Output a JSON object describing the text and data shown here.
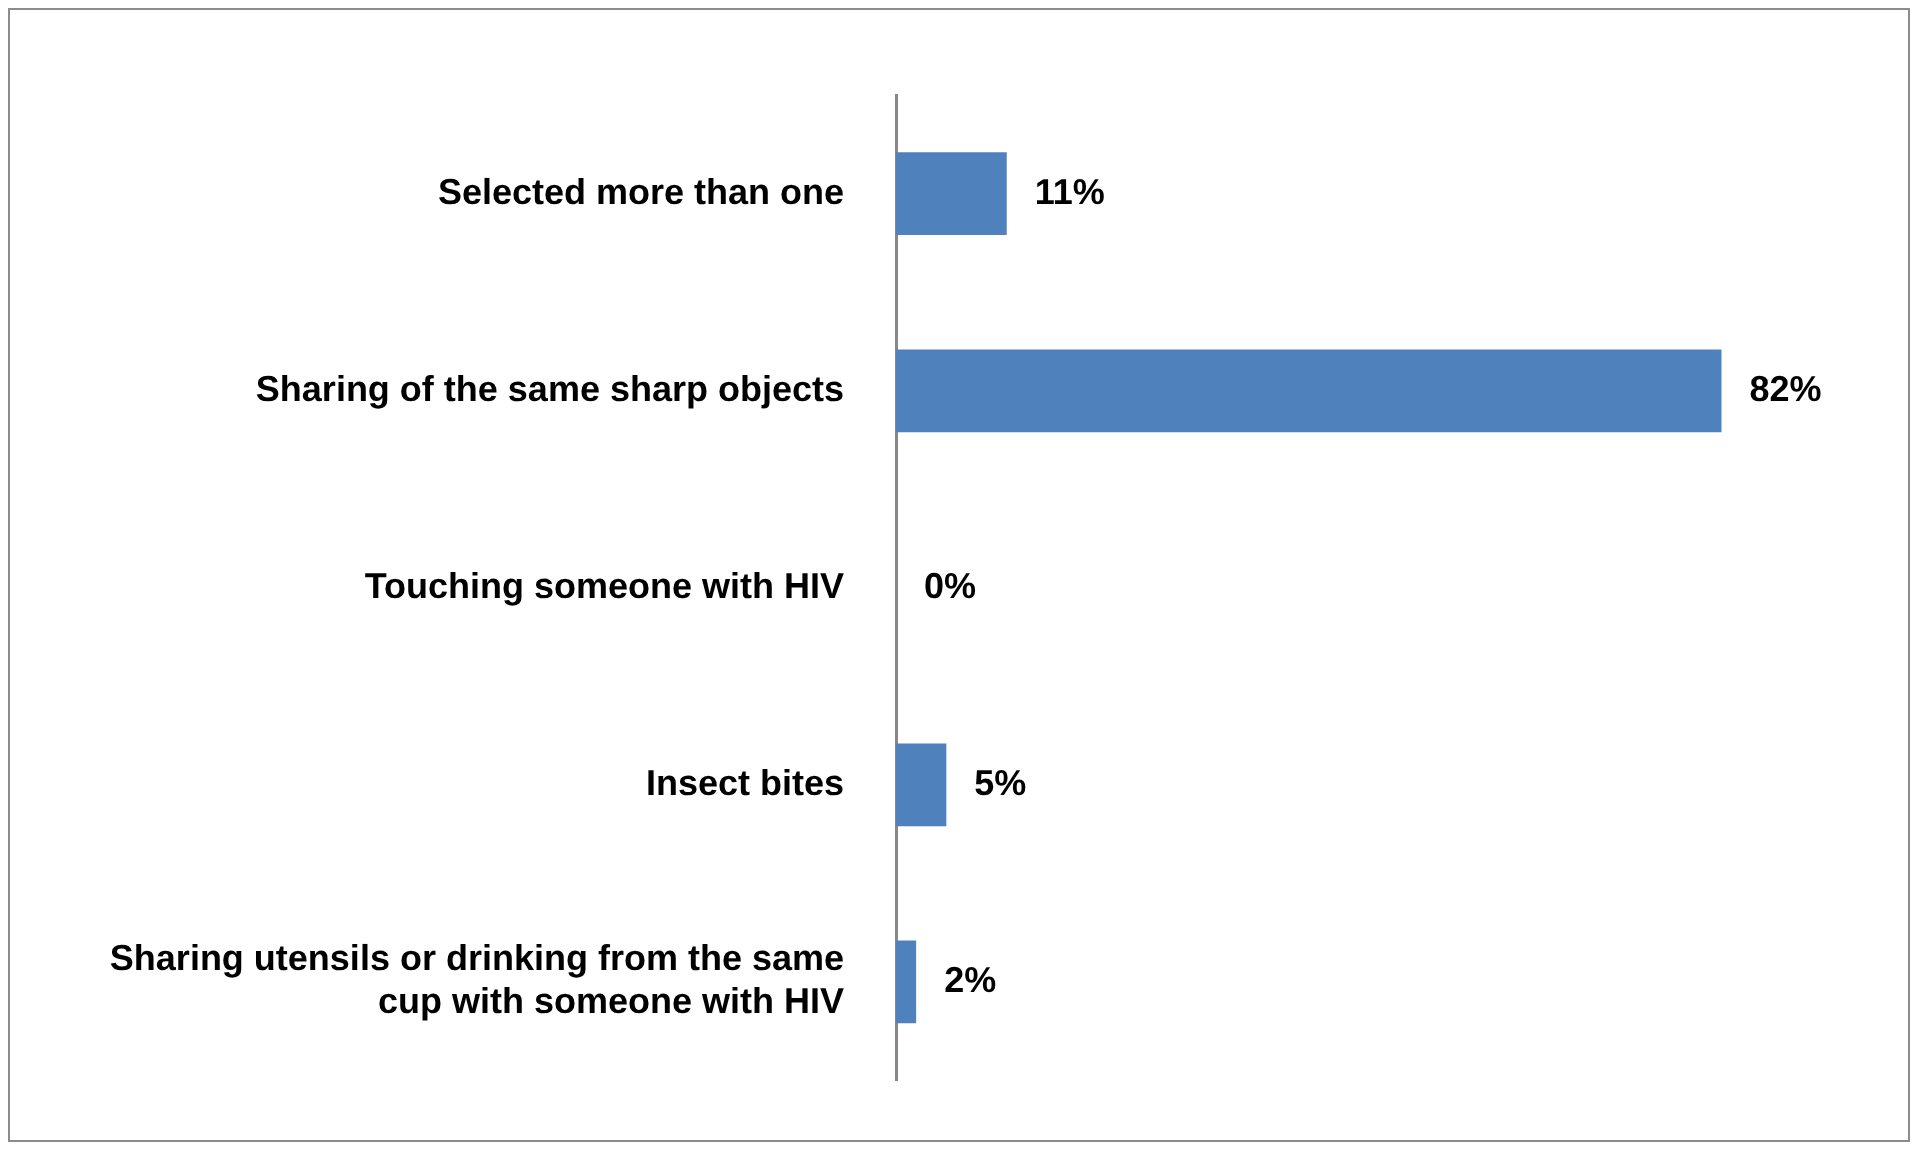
{
  "chart_data": {
    "type": "bar",
    "orientation": "horizontal",
    "categories": [
      "Selected more than one",
      "Sharing of the same sharp objects",
      "Touching someone with HIV",
      "Insect bites",
      "Sharing utensils or drinking from the same cup with someone with HIV"
    ],
    "values": [
      11,
      82,
      0,
      5,
      2
    ],
    "color": "#4f81bd",
    "value_labels": [
      "11%",
      "82%",
      "0%",
      "5%",
      "2%"
    ],
    "tick_labels": "y"
  }
}
